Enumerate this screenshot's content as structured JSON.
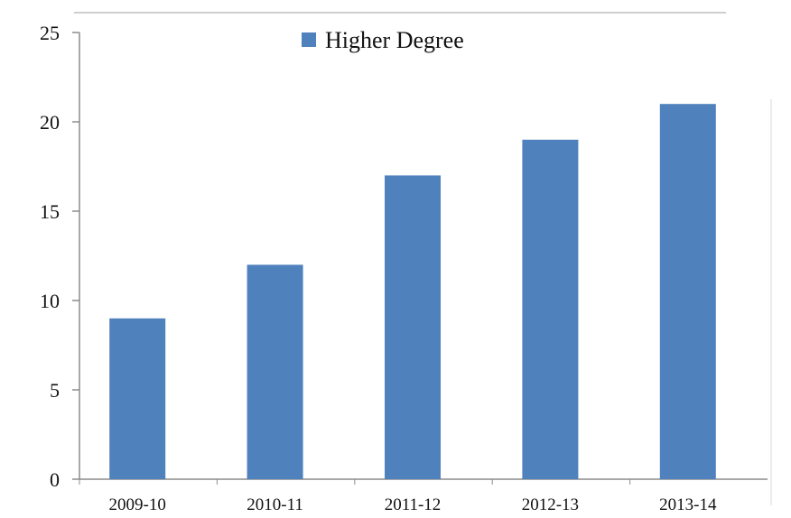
{
  "chart_data": {
    "type": "bar",
    "title": "",
    "xlabel": "",
    "ylabel": "",
    "categories": [
      "2009-10",
      "2010-11",
      "2011-12",
      "2012-13",
      "2013-14"
    ],
    "series": [
      {
        "name": "Higher Degree",
        "values": [
          9,
          12,
          17,
          19,
          21
        ]
      }
    ],
    "ylim": [
      0,
      25
    ],
    "yticks": [
      "0",
      "5",
      "10",
      "15",
      "20",
      "25"
    ],
    "grid": false,
    "legend": {
      "position": "top-center"
    },
    "colors": {
      "bar": "#4f81bd",
      "axis": "#8c8c8c",
      "frame": "#bfbfbf"
    }
  }
}
